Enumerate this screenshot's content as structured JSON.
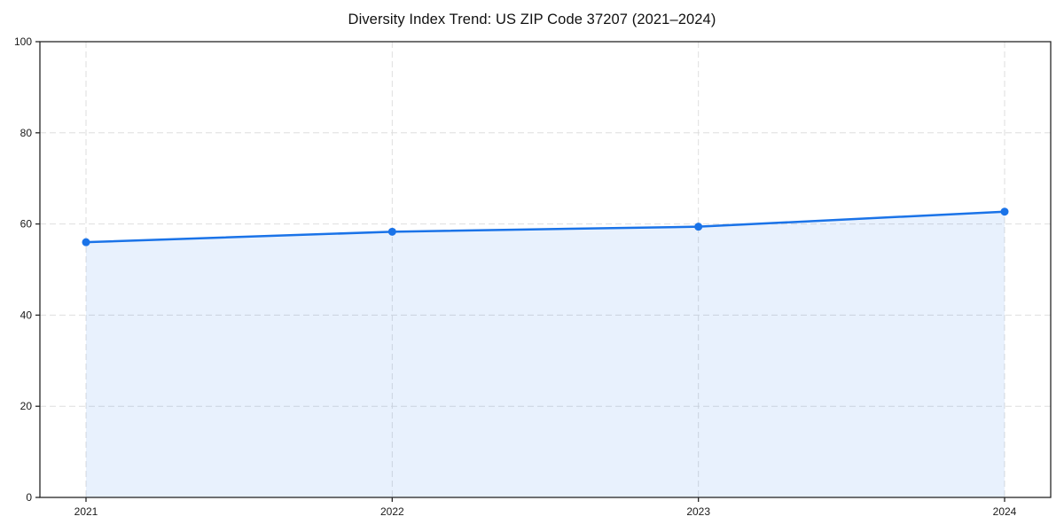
{
  "chart_data": {
    "type": "line",
    "title": "Diversity Index Trend: US ZIP Code 37207 (2021–2024)",
    "categories": [
      "2021",
      "2022",
      "2023",
      "2024"
    ],
    "series": [
      {
        "name": "Diversity Index",
        "values": [
          56.0,
          58.3,
          59.4,
          62.7
        ]
      }
    ],
    "xlabel": "",
    "ylabel": "",
    "ylim": [
      0,
      100
    ],
    "yticks": [
      0,
      20,
      40,
      60,
      80,
      100
    ],
    "grid": "dashed-both-axes",
    "legend_position": "none",
    "marker": "circle",
    "area_fill_under_line": true,
    "colors": {
      "line": "#1a73e8",
      "marker": "#1a73e8",
      "area_fill": "rgba(26,115,232,0.10)",
      "grid": "#dedede",
      "axis": "#262626",
      "tick_label": "#1a1a1a",
      "title": "#111111",
      "background": "#ffffff"
    }
  }
}
